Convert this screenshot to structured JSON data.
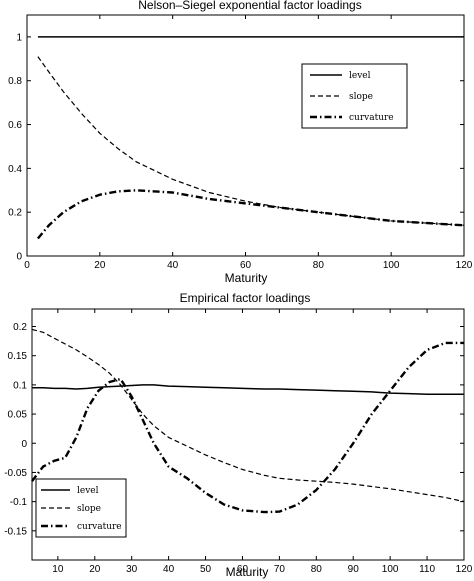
{
  "chart_data": [
    {
      "type": "line",
      "title": "Nelson–Siegel exponential factor loadings",
      "xlabel": "Maturity",
      "ylabel": "",
      "xlim": [
        0,
        120
      ],
      "ylim": [
        0,
        1.1
      ],
      "xticks": [
        0,
        20,
        40,
        60,
        80,
        100,
        120
      ],
      "xtick_labels": [
        "0",
        "20",
        "40",
        "60",
        "80",
        "100",
        "120"
      ],
      "yticks": [
        0,
        0.2,
        0.4,
        0.6,
        0.8,
        1
      ],
      "ytick_labels": [
        "0",
        "0.2",
        "0.4",
        "0.6",
        "0.8",
        "1"
      ],
      "grid": false,
      "legend": "top-right",
      "x": [
        3,
        6,
        10,
        15,
        20,
        25,
        30,
        40,
        50,
        60,
        70,
        80,
        90,
        100,
        110,
        120
      ],
      "series": [
        {
          "name": "level",
          "style": "solid",
          "values": [
            1,
            1,
            1,
            1,
            1,
            1,
            1,
            1,
            1,
            1,
            1,
            1,
            1,
            1,
            1,
            1
          ]
        },
        {
          "name": "slope",
          "style": "dashed",
          "values": [
            0.91,
            0.84,
            0.75,
            0.65,
            0.56,
            0.49,
            0.43,
            0.35,
            0.29,
            0.25,
            0.22,
            0.2,
            0.18,
            0.16,
            0.15,
            0.14
          ]
        },
        {
          "name": "curvature",
          "style": "dashdot",
          "values": [
            0.08,
            0.14,
            0.2,
            0.25,
            0.28,
            0.295,
            0.3,
            0.29,
            0.26,
            0.24,
            0.22,
            0.2,
            0.18,
            0.16,
            0.15,
            0.14
          ]
        }
      ]
    },
    {
      "type": "line",
      "title": "Empirical factor loadings",
      "xlabel": "Maturity",
      "ylabel": "",
      "xlim": [
        3,
        120
      ],
      "ylim": [
        -0.2,
        0.23
      ],
      "xticks": [
        10,
        20,
        30,
        40,
        50,
        60,
        70,
        80,
        90,
        100,
        110,
        120
      ],
      "xtick_labels": [
        "10",
        "20",
        "30",
        "40",
        "50",
        "60",
        "70",
        "80",
        "90",
        "100",
        "110",
        "120"
      ],
      "yticks": [
        -0.15,
        -0.1,
        -0.05,
        0,
        0.05,
        0.1,
        0.15,
        0.2
      ],
      "ytick_labels": [
        "-0.15",
        "-0.1",
        "-0.05",
        "0",
        "0.05",
        "0.1",
        "0.15",
        "0.2"
      ],
      "grid": false,
      "legend": "bottom-left",
      "x": [
        3,
        6,
        9,
        12,
        15,
        18,
        21,
        24,
        27,
        30,
        33,
        36,
        40,
        45,
        50,
        55,
        60,
        66,
        70,
        75,
        80,
        85,
        90,
        95,
        100,
        105,
        110,
        115,
        120
      ],
      "series": [
        {
          "name": "level",
          "style": "solid",
          "values": [
            0.095,
            0.095,
            0.094,
            0.094,
            0.093,
            0.094,
            0.096,
            0.097,
            0.098,
            0.099,
            0.1,
            0.1,
            0.098,
            0.097,
            0.096,
            0.095,
            0.094,
            0.093,
            0.093,
            0.092,
            0.091,
            0.09,
            0.089,
            0.088,
            0.086,
            0.085,
            0.084,
            0.084,
            0.084
          ]
        },
        {
          "name": "slope",
          "style": "dashed",
          "values": [
            0.195,
            0.19,
            0.18,
            0.17,
            0.16,
            0.148,
            0.135,
            0.12,
            0.1,
            0.075,
            0.05,
            0.03,
            0.01,
            -0.005,
            -0.02,
            -0.033,
            -0.045,
            -0.055,
            -0.06,
            -0.063,
            -0.065,
            -0.067,
            -0.07,
            -0.074,
            -0.078,
            -0.083,
            -0.088,
            -0.093,
            -0.1
          ]
        },
        {
          "name": "curvature",
          "style": "dashdot",
          "values": [
            -0.065,
            -0.04,
            -0.03,
            -0.025,
            0.01,
            0.06,
            0.09,
            0.105,
            0.11,
            0.08,
            0.04,
            0.0,
            -0.04,
            -0.06,
            -0.085,
            -0.105,
            -0.115,
            -0.118,
            -0.117,
            -0.105,
            -0.08,
            -0.045,
            0.0,
            0.05,
            0.09,
            0.13,
            0.16,
            0.172,
            0.172
          ]
        }
      ]
    }
  ]
}
